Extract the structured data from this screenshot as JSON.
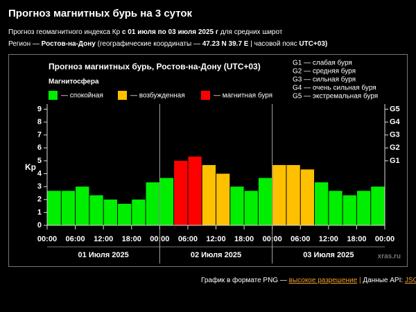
{
  "header": {
    "title": "Прогноз магнитных бурь на 3 суток",
    "line1": [
      "Прогноз геомагнитного индекса Кр",
      "с 01 июля по 03 июля 2025 г",
      "для средних широт"
    ],
    "line2": [
      "Регион —",
      "Ростов-на-Дону",
      "(географические координаты —",
      "47.23 N 39.7 E",
      "| часовой пояс",
      "UTC+03)"
    ]
  },
  "chart_data": {
    "type": "bar",
    "title": "Прогноз магнитных бурь, Ростов-на-Дону (UTC+03)",
    "subtitle": "Магнитосфера",
    "legend": [
      {
        "label": "— спокойная",
        "color": "#00ee00"
      },
      {
        "label": "— возбужденная",
        "color": "#ffc000"
      },
      {
        "label": "— магнитная буря",
        "color": "#ff0000"
      }
    ],
    "notes": [
      "G1 — слабая буря",
      "G2 — средняя буря",
      "G3 — сильная буря",
      "G4 — очень сильная буря",
      "G5 — экстремальная буря"
    ],
    "ylabel": "Kp",
    "categories": [
      null,
      null,
      null,
      null,
      null,
      null,
      null,
      null,
      null,
      null,
      null,
      null,
      null,
      null,
      null,
      null,
      null,
      null,
      null,
      null,
      null,
      null,
      null,
      null
    ],
    "values": [
      2.67,
      2.67,
      3.0,
      2.33,
      2.0,
      1.67,
      2.0,
      3.33,
      3.67,
      5.0,
      5.33,
      4.67,
      4.0,
      3.0,
      2.67,
      3.67,
      4.67,
      4.67,
      4.33,
      3.33,
      2.67,
      2.33,
      2.67,
      3.0
    ],
    "colors": [
      "#00ee00",
      "#00ee00",
      "#00ee00",
      "#00ee00",
      "#00ee00",
      "#00ee00",
      "#00ee00",
      "#00ee00",
      "#00ee00",
      "#ff0000",
      "#ff0000",
      "#ffc000",
      "#ffc000",
      "#00ee00",
      "#00ee00",
      "#00ee00",
      "#ffc000",
      "#ffc000",
      "#ffc000",
      "#00ee00",
      "#00ee00",
      "#00ee00",
      "#00ee00",
      "#00ee00"
    ],
    "xtick_labels": [
      "00:00",
      "06:00",
      "12:00",
      "18:00",
      "00:00",
      "06:00",
      "12:00",
      "18:00",
      "00:00",
      "06:00",
      "12:00",
      "18:00",
      "00:00"
    ],
    "days": [
      "01 Июля 2025",
      "02 Июля 2025",
      "03 Июля 2025"
    ],
    "ylim": [
      0,
      9.4
    ],
    "yticks": [
      0,
      1,
      2,
      3,
      4,
      5,
      6,
      7,
      8,
      9
    ],
    "y2lim": [
      0,
      9.4
    ],
    "y2ticks": [
      {
        "value": 5,
        "label": "G1"
      },
      {
        "value": 6,
        "label": "G2"
      },
      {
        "value": 7,
        "label": "G3"
      },
      {
        "value": 8,
        "label": "G4"
      },
      {
        "value": 9,
        "label": "G5"
      }
    ],
    "watermark": "xras.ru"
  },
  "footer": {
    "parts": [
      "График в формате PNG —",
      "высокое разрешение",
      "|",
      "Данные API:",
      "JSON"
    ]
  }
}
